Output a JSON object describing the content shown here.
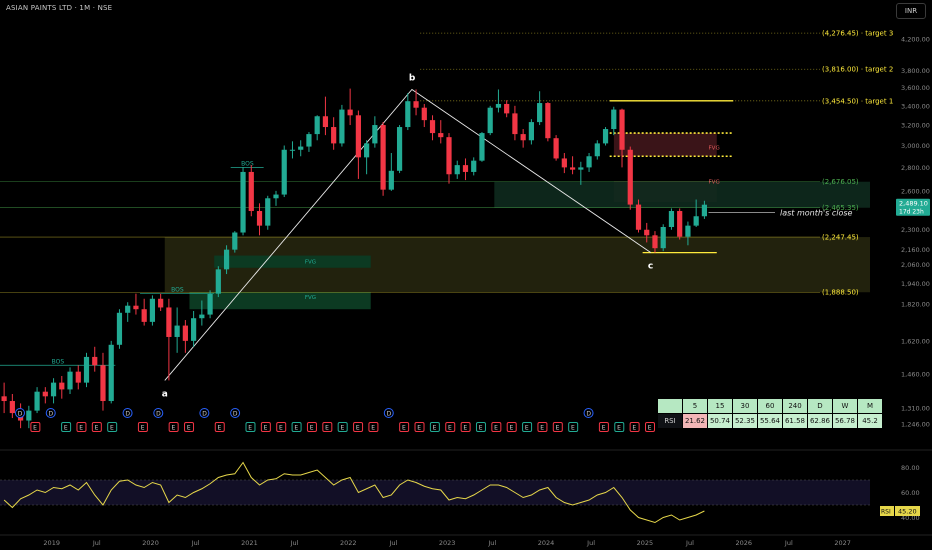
{
  "header": {
    "symbol": "ASIAN PAINTS LTD · 1M · NSE",
    "currency": "INR"
  },
  "colors": {
    "up": "#22ab94",
    "down": "#f23645",
    "rsi": "#e6d74a",
    "annotation": "#ffeb3b",
    "fvg_red": "#3a1418",
    "fvg_green": "#0c3a22",
    "zone_yellow": "#2a2a10"
  },
  "chart_data": [
    {
      "type": "candlestick",
      "title": "",
      "y_scale": "log",
      "y_range": [
        1200,
        4600
      ],
      "y_ticks": [
        4200,
        3800,
        3600,
        3400,
        3200,
        3000,
        2800,
        2600,
        2300,
        2160,
        2060,
        1940,
        1820,
        1620,
        1460,
        1310,
        1246
      ],
      "y_tick_labels": [
        "4,200.00",
        "3,800.00",
        "3,600.00",
        "3,400.00",
        "3,200.00",
        "3,000.00",
        "2,800.00",
        "2,600.00",
        "2,300.00",
        "2,160.00",
        "2,060.00",
        "1,940.00",
        "1,820.00",
        "1,620.00",
        "1,460.00",
        "1,310.00",
        "1,246.00"
      ],
      "x_range": [
        "2018-07",
        "2027-03"
      ],
      "x_ticks": [
        {
          "label": "2019",
          "date": 2019.0
        },
        {
          "label": "Jul",
          "date": 2019.5
        },
        {
          "label": "2020",
          "date": 2020.0
        },
        {
          "label": "Jul",
          "date": 2020.5
        },
        {
          "label": "2021",
          "date": 2021.0
        },
        {
          "label": "Jul",
          "date": 2021.5
        },
        {
          "label": "2022",
          "date": 2022.0
        },
        {
          "label": "Jul",
          "date": 2022.5
        },
        {
          "label": "2023",
          "date": 2023.0
        },
        {
          "label": "Jul",
          "date": 2023.5
        },
        {
          "label": "2024",
          "date": 2024.0
        },
        {
          "label": "Jul",
          "date": 2024.5
        },
        {
          "label": "2025",
          "date": 2025.0
        },
        {
          "label": "Jul",
          "date": 2025.5
        },
        {
          "label": "2026",
          "date": 2026.0
        },
        {
          "label": "Jul",
          "date": 2026.5
        },
        {
          "label": "2027",
          "date": 2027.0
        }
      ],
      "candles": [
        {
          "date": "2018-07",
          "o": 1360,
          "h": 1420,
          "l": 1290,
          "c": 1340
        },
        {
          "date": "2018-08",
          "o": 1340,
          "h": 1370,
          "l": 1270,
          "c": 1290
        },
        {
          "date": "2018-09",
          "o": 1290,
          "h": 1330,
          "l": 1230,
          "c": 1260
        },
        {
          "date": "2018-10",
          "o": 1260,
          "h": 1320,
          "l": 1230,
          "c": 1300
        },
        {
          "date": "2018-11",
          "o": 1300,
          "h": 1400,
          "l": 1290,
          "c": 1380
        },
        {
          "date": "2018-12",
          "o": 1380,
          "h": 1400,
          "l": 1330,
          "c": 1360
        },
        {
          "date": "2019-01",
          "o": 1360,
          "h": 1440,
          "l": 1330,
          "c": 1420
        },
        {
          "date": "2019-02",
          "o": 1420,
          "h": 1450,
          "l": 1350,
          "c": 1390
        },
        {
          "date": "2019-03",
          "o": 1390,
          "h": 1490,
          "l": 1370,
          "c": 1470
        },
        {
          "date": "2019-04",
          "o": 1470,
          "h": 1500,
          "l": 1390,
          "c": 1420
        },
        {
          "date": "2019-05",
          "o": 1420,
          "h": 1560,
          "l": 1400,
          "c": 1540
        },
        {
          "date": "2019-06",
          "o": 1540,
          "h": 1590,
          "l": 1470,
          "c": 1500
        },
        {
          "date": "2019-07",
          "o": 1500,
          "h": 1560,
          "l": 1300,
          "c": 1340
        },
        {
          "date": "2019-08",
          "o": 1340,
          "h": 1620,
          "l": 1330,
          "c": 1600
        },
        {
          "date": "2019-09",
          "o": 1600,
          "h": 1790,
          "l": 1580,
          "c": 1770
        },
        {
          "date": "2019-10",
          "o": 1770,
          "h": 1830,
          "l": 1720,
          "c": 1810
        },
        {
          "date": "2019-11",
          "o": 1810,
          "h": 1880,
          "l": 1760,
          "c": 1790
        },
        {
          "date": "2019-12",
          "o": 1790,
          "h": 1850,
          "l": 1700,
          "c": 1720
        },
        {
          "date": "2020-01",
          "o": 1720,
          "h": 1870,
          "l": 1700,
          "c": 1850
        },
        {
          "date": "2020-02",
          "o": 1850,
          "h": 1880,
          "l": 1780,
          "c": 1800
        },
        {
          "date": "2020-03",
          "o": 1800,
          "h": 1850,
          "l": 1430,
          "c": 1640
        },
        {
          "date": "2020-04",
          "o": 1640,
          "h": 1800,
          "l": 1560,
          "c": 1700
        },
        {
          "date": "2020-05",
          "o": 1700,
          "h": 1730,
          "l": 1560,
          "c": 1620
        },
        {
          "date": "2020-06",
          "o": 1620,
          "h": 1780,
          "l": 1590,
          "c": 1740
        },
        {
          "date": "2020-07",
          "o": 1740,
          "h": 1840,
          "l": 1700,
          "c": 1760
        },
        {
          "date": "2020-08",
          "o": 1760,
          "h": 1900,
          "l": 1740,
          "c": 1880
        },
        {
          "date": "2020-09",
          "o": 1880,
          "h": 2050,
          "l": 1860,
          "c": 2030
        },
        {
          "date": "2020-10",
          "o": 2030,
          "h": 2190,
          "l": 2000,
          "c": 2160
        },
        {
          "date": "2020-11",
          "o": 2160,
          "h": 2290,
          "l": 2140,
          "c": 2280
        },
        {
          "date": "2020-12",
          "o": 2280,
          "h": 2800,
          "l": 2260,
          "c": 2760
        },
        {
          "date": "2021-01",
          "o": 2760,
          "h": 2820,
          "l": 2400,
          "c": 2440
        },
        {
          "date": "2021-02",
          "o": 2440,
          "h": 2500,
          "l": 2260,
          "c": 2330
        },
        {
          "date": "2021-03",
          "o": 2330,
          "h": 2560,
          "l": 2300,
          "c": 2540
        },
        {
          "date": "2021-04",
          "o": 2540,
          "h": 2600,
          "l": 2480,
          "c": 2570
        },
        {
          "date": "2021-05",
          "o": 2570,
          "h": 3000,
          "l": 2550,
          "c": 2960
        },
        {
          "date": "2021-06",
          "o": 2960,
          "h": 3040,
          "l": 2880,
          "c": 2960
        },
        {
          "date": "2021-07",
          "o": 2960,
          "h": 3050,
          "l": 2900,
          "c": 2990
        },
        {
          "date": "2021-08",
          "o": 2990,
          "h": 3130,
          "l": 2940,
          "c": 3110
        },
        {
          "date": "2021-09",
          "o": 3110,
          "h": 3300,
          "l": 3050,
          "c": 3290
        },
        {
          "date": "2021-10",
          "o": 3290,
          "h": 3500,
          "l": 3100,
          "c": 3180
        },
        {
          "date": "2021-11",
          "o": 3180,
          "h": 3280,
          "l": 2960,
          "c": 3020
        },
        {
          "date": "2021-12",
          "o": 3020,
          "h": 3410,
          "l": 2990,
          "c": 3360
        },
        {
          "date": "2022-01",
          "o": 3360,
          "h": 3590,
          "l": 3200,
          "c": 3300
        },
        {
          "date": "2022-02",
          "o": 3300,
          "h": 3350,
          "l": 2700,
          "c": 2890
        },
        {
          "date": "2022-03",
          "o": 2890,
          "h": 3050,
          "l": 2740,
          "c": 3020
        },
        {
          "date": "2022-04",
          "o": 3020,
          "h": 3290,
          "l": 2980,
          "c": 3200
        },
        {
          "date": "2022-05",
          "o": 3200,
          "h": 3230,
          "l": 2560,
          "c": 2610
        },
        {
          "date": "2022-06",
          "o": 2610,
          "h": 2930,
          "l": 2600,
          "c": 2770
        },
        {
          "date": "2022-07",
          "o": 2770,
          "h": 3200,
          "l": 2750,
          "c": 3180
        },
        {
          "date": "2022-08",
          "o": 3180,
          "h": 3540,
          "l": 3150,
          "c": 3450
        },
        {
          "date": "2022-09",
          "o": 3450,
          "h": 3580,
          "l": 3300,
          "c": 3380
        },
        {
          "date": "2022-10",
          "o": 3380,
          "h": 3420,
          "l": 3180,
          "c": 3250
        },
        {
          "date": "2022-11",
          "o": 3250,
          "h": 3300,
          "l": 3050,
          "c": 3120
        },
        {
          "date": "2022-12",
          "o": 3120,
          "h": 3250,
          "l": 3020,
          "c": 3080
        },
        {
          "date": "2023-01",
          "o": 3080,
          "h": 3120,
          "l": 2660,
          "c": 2740
        },
        {
          "date": "2023-02",
          "o": 2740,
          "h": 2860,
          "l": 2700,
          "c": 2820
        },
        {
          "date": "2023-03",
          "o": 2820,
          "h": 2880,
          "l": 2690,
          "c": 2760
        },
        {
          "date": "2023-04",
          "o": 2760,
          "h": 2890,
          "l": 2730,
          "c": 2860
        },
        {
          "date": "2023-05",
          "o": 2860,
          "h": 3130,
          "l": 2850,
          "c": 3120
        },
        {
          "date": "2023-06",
          "o": 3120,
          "h": 3400,
          "l": 3100,
          "c": 3380
        },
        {
          "date": "2023-07",
          "o": 3380,
          "h": 3580,
          "l": 3330,
          "c": 3420
        },
        {
          "date": "2023-08",
          "o": 3420,
          "h": 3460,
          "l": 3280,
          "c": 3320
        },
        {
          "date": "2023-09",
          "o": 3320,
          "h": 3400,
          "l": 3050,
          "c": 3110
        },
        {
          "date": "2023-10",
          "o": 3110,
          "h": 3160,
          "l": 2980,
          "c": 3050
        },
        {
          "date": "2023-11",
          "o": 3050,
          "h": 3260,
          "l": 3010,
          "c": 3230
        },
        {
          "date": "2023-12",
          "o": 3230,
          "h": 3560,
          "l": 3200,
          "c": 3430
        },
        {
          "date": "2024-01",
          "o": 3430,
          "h": 3440,
          "l": 3040,
          "c": 3070
        },
        {
          "date": "2024-02",
          "o": 3070,
          "h": 3100,
          "l": 2860,
          "c": 2880
        },
        {
          "date": "2024-03",
          "o": 2880,
          "h": 2930,
          "l": 2750,
          "c": 2800
        },
        {
          "date": "2024-04",
          "o": 2800,
          "h": 2900,
          "l": 2740,
          "c": 2780
        },
        {
          "date": "2024-05",
          "o": 2780,
          "h": 2850,
          "l": 2650,
          "c": 2800
        },
        {
          "date": "2024-06",
          "o": 2800,
          "h": 2930,
          "l": 2760,
          "c": 2900
        },
        {
          "date": "2024-07",
          "o": 2900,
          "h": 3050,
          "l": 2870,
          "c": 3020
        },
        {
          "date": "2024-08",
          "o": 3020,
          "h": 3180,
          "l": 3000,
          "c": 3160
        },
        {
          "date": "2024-09",
          "o": 3160,
          "h": 3390,
          "l": 3100,
          "c": 3360
        },
        {
          "date": "2024-10",
          "o": 3360,
          "h": 3370,
          "l": 2800,
          "c": 2960
        },
        {
          "date": "2024-11",
          "o": 2960,
          "h": 2990,
          "l": 2450,
          "c": 2490
        },
        {
          "date": "2024-12",
          "o": 2490,
          "h": 2530,
          "l": 2280,
          "c": 2300
        },
        {
          "date": "2025-01",
          "o": 2300,
          "h": 2350,
          "l": 2210,
          "c": 2260
        },
        {
          "date": "2025-02",
          "o": 2260,
          "h": 2290,
          "l": 2140,
          "c": 2170
        },
        {
          "date": "2025-03",
          "o": 2170,
          "h": 2340,
          "l": 2150,
          "c": 2320
        },
        {
          "date": "2025-04",
          "o": 2320,
          "h": 2460,
          "l": 2300,
          "c": 2440
        },
        {
          "date": "2025-05",
          "o": 2440,
          "h": 2460,
          "l": 2230,
          "c": 2250
        },
        {
          "date": "2025-06",
          "o": 2250,
          "h": 2360,
          "l": 2190,
          "c": 2330
        },
        {
          "date": "2025-07",
          "o": 2330,
          "h": 2530,
          "l": 2320,
          "c": 2400
        },
        {
          "date": "2025-08",
          "o": 2400,
          "h": 2520,
          "l": 2380,
          "c": 2489.1
        }
      ],
      "price_lines": [
        {
          "label": "(4,276.45) · target 3",
          "value": 4276.45,
          "color": "#ffeb3b",
          "style": "dotted"
        },
        {
          "label": "(3,816.00) · target 2",
          "value": 3816.0,
          "color": "#ffeb3b",
          "style": "dotted"
        },
        {
          "label": "(3,454.50) · target 1",
          "value": 3454.5,
          "color": "#ffeb3b",
          "style": "dotted"
        },
        {
          "label": "(2,676.05)",
          "value": 2676.05,
          "color": "#4caf50",
          "style": "solid"
        },
        {
          "label": "(2,465.35)",
          "value": 2465.35,
          "color": "#4caf50",
          "style": "solid"
        },
        {
          "label": "(2,247.45)",
          "value": 2247.45,
          "color": "#ffeb3b",
          "style": "solid"
        },
        {
          "label": "(1,888.50)",
          "value": 1888.5,
          "color": "#ffeb3b",
          "style": "solid"
        }
      ],
      "current_price": {
        "value": 2489.1,
        "label": "2,489.10",
        "countdown": "17d 23h"
      },
      "annotations": {
        "swing_points": [
          {
            "label": "a",
            "date": "2020-03",
            "value": 1430
          },
          {
            "label": "b",
            "date": "2022-09",
            "value": 3580
          },
          {
            "label": "c",
            "date": "2025-02",
            "value": 2140
          }
        ],
        "bos": [
          {
            "label": "BOS",
            "value": 1500
          },
          {
            "label": "BOS",
            "value": 1880
          },
          {
            "label": "BOS",
            "value": 2800
          }
        ],
        "fvg": [
          {
            "label": "FVG",
            "value": 2980
          },
          {
            "label": "FVG",
            "value": 2680
          },
          {
            "label": "FVG",
            "value": 2080
          },
          {
            "label": "FVG",
            "value": 1860
          }
        ],
        "last_close_text": "last month's close"
      },
      "event_markers": [
        "D",
        "E",
        "D",
        "E",
        "E",
        "E",
        "E",
        "D",
        "E",
        "D",
        "E",
        "E",
        "D",
        "E",
        "D",
        "E",
        "E",
        "E",
        "E",
        "E",
        "E",
        "E",
        "E",
        "E",
        "D",
        "E",
        "E",
        "E",
        "E",
        "E",
        "E",
        "E",
        "E",
        "E",
        "E",
        "E",
        "E",
        "D",
        "E",
        "E",
        "E",
        "E"
      ]
    },
    {
      "type": "line",
      "title": "",
      "y_range": [
        30,
        90
      ],
      "y_ticks": [
        80,
        60,
        40
      ],
      "y_tick_labels": [
        "80.00",
        "60.00",
        "40.00"
      ],
      "bands": [
        70,
        50
      ],
      "series": [
        {
          "name": "RSI",
          "current": "45.20",
          "values": [
            54,
            48,
            55,
            58,
            62,
            60,
            64,
            63,
            66,
            62,
            68,
            58,
            50,
            62,
            69,
            70,
            66,
            64,
            68,
            66,
            52,
            58,
            56,
            60,
            63,
            67,
            72,
            74,
            75,
            84,
            72,
            66,
            70,
            71,
            75,
            74,
            74,
            76,
            78,
            72,
            66,
            70,
            72,
            60,
            63,
            66,
            56,
            58,
            66,
            70,
            68,
            65,
            63,
            62,
            54,
            56,
            55,
            58,
            62,
            66,
            66,
            64,
            60,
            56,
            58,
            62,
            64,
            56,
            52,
            50,
            52,
            54,
            58,
            60,
            64,
            56,
            46,
            40,
            38,
            36,
            40,
            42,
            38,
            40,
            42,
            45.2
          ]
        }
      ]
    }
  ],
  "rsi_table": {
    "label": "RSI",
    "headers": [
      "5",
      "15",
      "30",
      "60",
      "240",
      "D",
      "W",
      "M"
    ],
    "values": [
      "21.62",
      "50.74",
      "52.35",
      "55.64",
      "61.58",
      "62.86",
      "56.78",
      "45.2"
    ]
  }
}
